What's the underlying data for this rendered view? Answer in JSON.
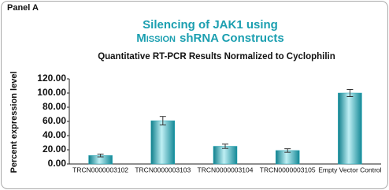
{
  "panel_label": "Panel A",
  "chart_data": {
    "type": "bar",
    "title": [
      "Silencing of JAK1 using",
      "Mission",
      "shRNA Constructs"
    ],
    "subtitle": "Quantitative RT-PCR Results Normalized to Cyclophilin",
    "y_label": "Percent expression level",
    "categories": [
      "TRCN0000003102",
      "TRCN0000003103",
      "TRCN0000003104",
      "TRCN0000003105",
      "Empty Vector Control"
    ],
    "values": [
      12,
      61,
      25,
      19,
      100
    ],
    "errors": [
      2,
      6,
      3,
      2.5,
      5
    ],
    "color": "#1fa3b3",
    "ylim": [
      0,
      120
    ],
    "yticks": [
      {
        "value": 0,
        "label": "0.00"
      },
      {
        "value": 20,
        "label": "20.00"
      },
      {
        "value": 40,
        "label": "40.00"
      },
      {
        "value": 60,
        "label": "60.00"
      },
      {
        "value": 80,
        "label": "80.00"
      },
      {
        "value": 100,
        "label": "100.00"
      },
      {
        "value": 120,
        "label": "120.00"
      }
    ],
    "grid": false
  }
}
